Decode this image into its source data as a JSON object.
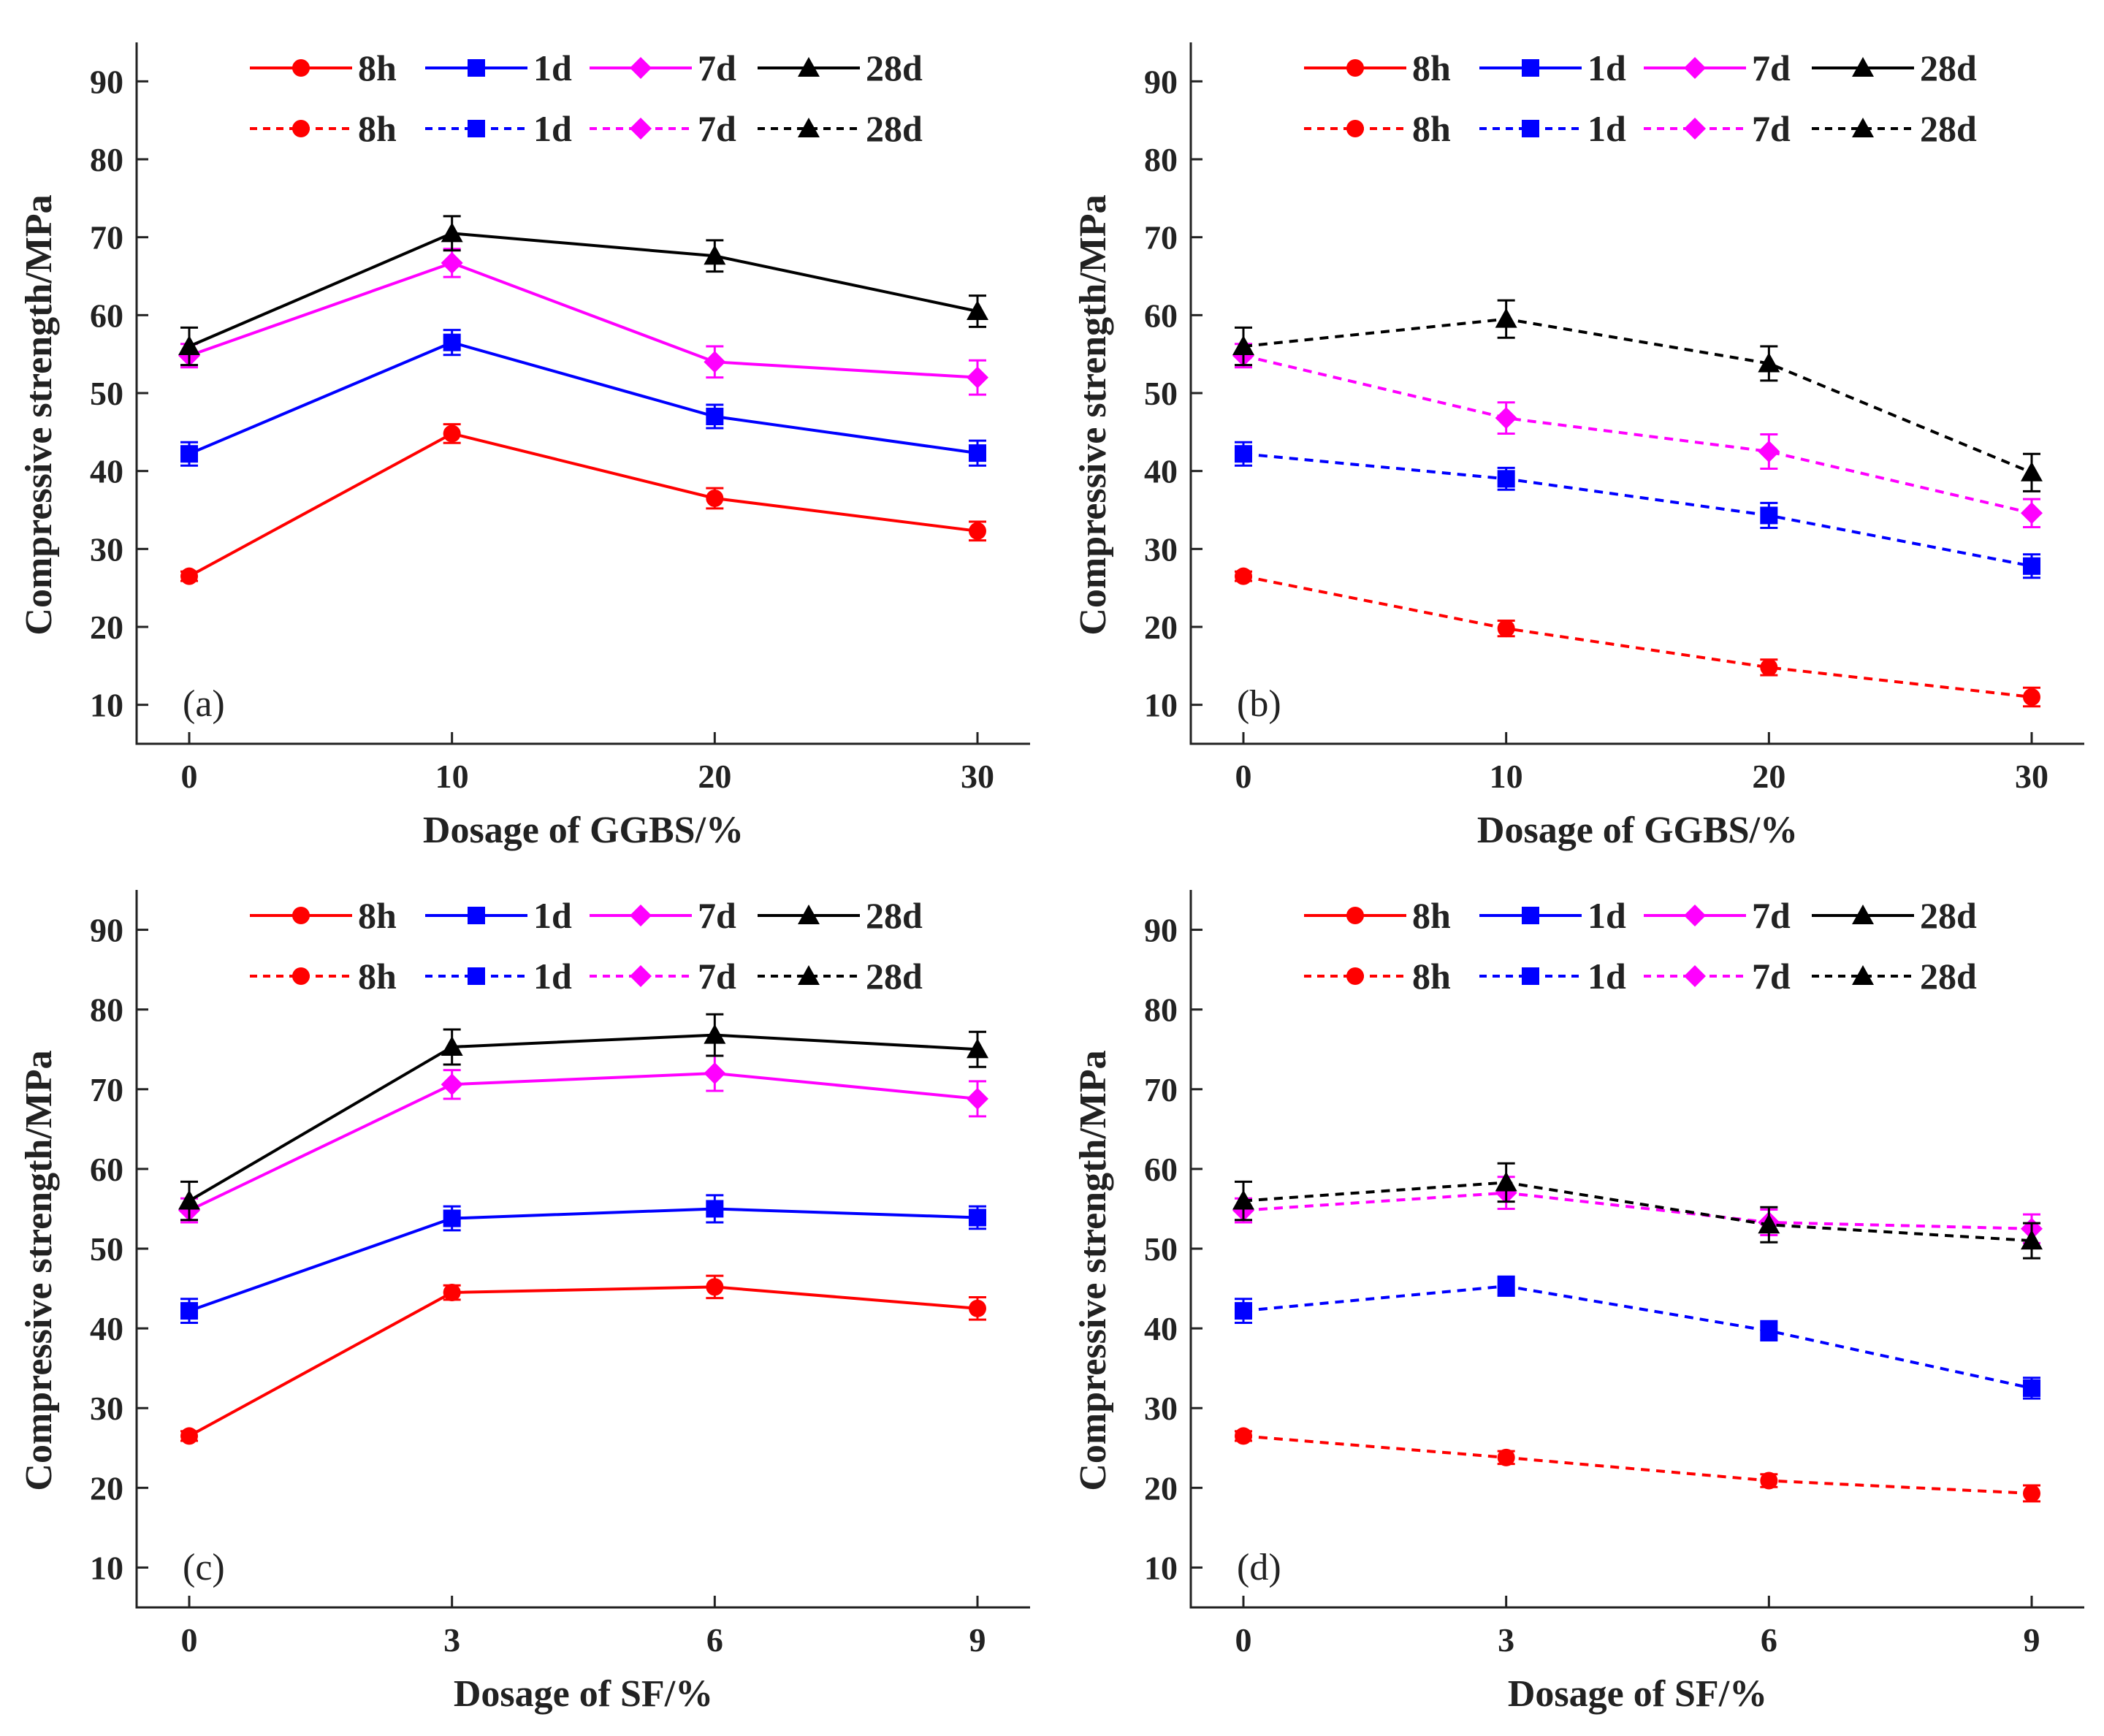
{
  "chart_data": [
    {
      "type": "line",
      "panel_label": "(a)",
      "xlabel": "Dosage of GGBS/%",
      "ylabel": "Compressive strength/MPa",
      "x": [
        0,
        10,
        20,
        30
      ],
      "xticks": [
        "0",
        "10",
        "20",
        "30"
      ],
      "ylim": [
        5,
        95
      ],
      "yticks": [
        10,
        20,
        30,
        40,
        50,
        60,
        70,
        80,
        90
      ],
      "legend": "top",
      "series": [
        {
          "name": "8h",
          "style": "solid",
          "color": "#ff0000",
          "marker": "circle",
          "values": [
            26.5,
            44.8,
            36.5,
            32.3
          ],
          "errors": [
            0.6,
            1.2,
            1.3,
            1.2
          ]
        },
        {
          "name": "1d",
          "style": "solid",
          "color": "#0000ff",
          "marker": "square",
          "values": [
            42.2,
            56.5,
            47.0,
            42.3
          ],
          "errors": [
            1.5,
            1.6,
            1.5,
            1.6
          ]
        },
        {
          "name": "7d",
          "style": "solid",
          "color": "#ff00ff",
          "marker": "diamond",
          "values": [
            54.8,
            66.7,
            54.0,
            52.0
          ],
          "errors": [
            1.5,
            1.8,
            2.0,
            2.2
          ]
        },
        {
          "name": "28d",
          "style": "solid",
          "color": "#000000",
          "marker": "triangle",
          "values": [
            56.0,
            70.5,
            67.6,
            60.5
          ],
          "errors": [
            2.4,
            2.2,
            2.0,
            2.0
          ]
        }
      ]
    },
    {
      "type": "line",
      "panel_label": "(b)",
      "xlabel": "Dosage of GGBS/%",
      "ylabel": "Compressive strength/MPa",
      "x": [
        0,
        10,
        20,
        30
      ],
      "xticks": [
        "0",
        "10",
        "20",
        "30"
      ],
      "ylim": [
        5,
        95
      ],
      "yticks": [
        10,
        20,
        30,
        40,
        50,
        60,
        70,
        80,
        90
      ],
      "legend": "top",
      "series": [
        {
          "name": "8h",
          "style": "dashed",
          "color": "#ff0000",
          "marker": "circle",
          "values": [
            26.5,
            19.8,
            14.8,
            11.0
          ],
          "errors": [
            0.6,
            1.0,
            1.0,
            1.2
          ]
        },
        {
          "name": "1d",
          "style": "dashed",
          "color": "#0000ff",
          "marker": "square",
          "values": [
            42.2,
            39.0,
            34.3,
            27.8
          ],
          "errors": [
            1.5,
            1.4,
            1.6,
            1.5
          ]
        },
        {
          "name": "7d",
          "style": "dashed",
          "color": "#ff00ff",
          "marker": "diamond",
          "values": [
            54.8,
            46.8,
            42.5,
            34.6
          ],
          "errors": [
            1.5,
            2.0,
            2.2,
            1.8
          ]
        },
        {
          "name": "28d",
          "style": "dashed",
          "color": "#000000",
          "marker": "triangle",
          "values": [
            56.0,
            59.5,
            53.8,
            39.8
          ],
          "errors": [
            2.4,
            2.4,
            2.2,
            2.4
          ]
        }
      ]
    },
    {
      "type": "line",
      "panel_label": "(c)",
      "xlabel": "Dosage of SF/%",
      "ylabel": "Compressive strength/MPa",
      "x": [
        0,
        3,
        6,
        9
      ],
      "xticks": [
        "0",
        "3",
        "6",
        "9"
      ],
      "ylim": [
        5,
        95
      ],
      "yticks": [
        10,
        20,
        30,
        40,
        50,
        60,
        70,
        80,
        90
      ],
      "legend": "top",
      "series": [
        {
          "name": "8h",
          "style": "solid",
          "color": "#ff0000",
          "marker": "circle",
          "values": [
            26.5,
            44.5,
            45.2,
            42.5
          ],
          "errors": [
            0.6,
            0.9,
            1.4,
            1.4
          ]
        },
        {
          "name": "1d",
          "style": "solid",
          "color": "#0000ff",
          "marker": "square",
          "values": [
            42.2,
            53.8,
            55.0,
            53.9
          ],
          "errors": [
            1.5,
            1.5,
            1.7,
            1.4
          ]
        },
        {
          "name": "7d",
          "style": "solid",
          "color": "#ff00ff",
          "marker": "diamond",
          "values": [
            54.8,
            70.6,
            72.0,
            68.8
          ],
          "errors": [
            1.5,
            1.8,
            2.2,
            2.2
          ]
        },
        {
          "name": "28d",
          "style": "solid",
          "color": "#000000",
          "marker": "triangle",
          "values": [
            56.0,
            75.3,
            76.8,
            75.0
          ],
          "errors": [
            2.4,
            2.2,
            2.6,
            2.2
          ]
        }
      ]
    },
    {
      "type": "line",
      "panel_label": "(d)",
      "xlabel": "Dosage of SF/%",
      "ylabel": "Compressive strength/MPa",
      "x": [
        0,
        3,
        6,
        9
      ],
      "xticks": [
        "0",
        "3",
        "6",
        "9"
      ],
      "ylim": [
        5,
        95
      ],
      "yticks": [
        10,
        20,
        30,
        40,
        50,
        60,
        70,
        80,
        90
      ],
      "legend": "top",
      "series": [
        {
          "name": "8h",
          "style": "dashed",
          "color": "#ff0000",
          "marker": "circle",
          "values": [
            26.5,
            23.8,
            20.9,
            19.3
          ],
          "errors": [
            0.6,
            0.8,
            0.8,
            1.0
          ]
        },
        {
          "name": "1d",
          "style": "dashed",
          "color": "#0000ff",
          "marker": "square",
          "values": [
            42.2,
            45.3,
            39.7,
            32.5
          ],
          "errors": [
            1.5,
            1.2,
            1.2,
            1.3
          ]
        },
        {
          "name": "7d",
          "style": "dashed",
          "color": "#ff00ff",
          "marker": "diamond",
          "values": [
            54.8,
            57.0,
            53.3,
            52.5
          ],
          "errors": [
            1.5,
            2.0,
            1.6,
            1.8
          ]
        },
        {
          "name": "28d",
          "style": "dashed",
          "color": "#000000",
          "marker": "triangle",
          "values": [
            56.0,
            58.3,
            53.0,
            51.0
          ],
          "errors": [
            2.4,
            2.4,
            2.2,
            2.2
          ]
        }
      ]
    }
  ],
  "legend": {
    "solid_entries": [
      "8h",
      "1d",
      "7d",
      "28d"
    ],
    "dashed_entries": [
      "8h",
      "1d",
      "7d",
      "28d"
    ]
  }
}
